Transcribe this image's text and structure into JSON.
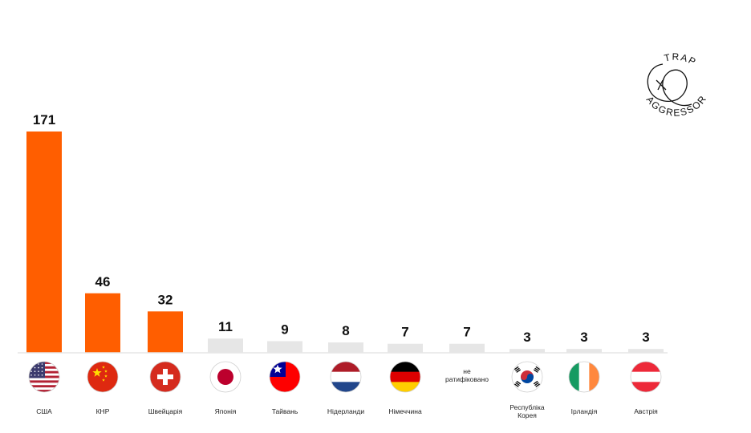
{
  "chart_data": {
    "type": "bar",
    "title": "",
    "xlabel": "",
    "ylabel": "",
    "ylim": [
      0,
      171
    ],
    "grid": false,
    "highlight_color": "#ff5e00",
    "muted_color": "#e6e6e6",
    "highlight_count": 3,
    "categories": [
      "США",
      "КНР",
      "Швейцарія",
      "Японія",
      "Тайвань",
      "Нідерланди",
      "Німеччина",
      "не ратифіковано",
      "Республіка Корея",
      "Ірландія",
      "Австрія"
    ],
    "values": [
      171,
      46,
      32,
      11,
      9,
      8,
      7,
      7,
      3,
      3,
      3
    ],
    "flags": [
      "usa-flag-icon",
      "china-flag-icon",
      "switzerland-flag-icon",
      "japan-flag-icon",
      "taiwan-flag-icon",
      "netherlands-flag-icon",
      "germany-flag-icon",
      "",
      "south-korea-flag-icon",
      "ireland-flag-icon",
      "austria-flag-icon"
    ],
    "logo": {
      "line1": "TRAP",
      "line2": "AGGRESSOR"
    }
  }
}
